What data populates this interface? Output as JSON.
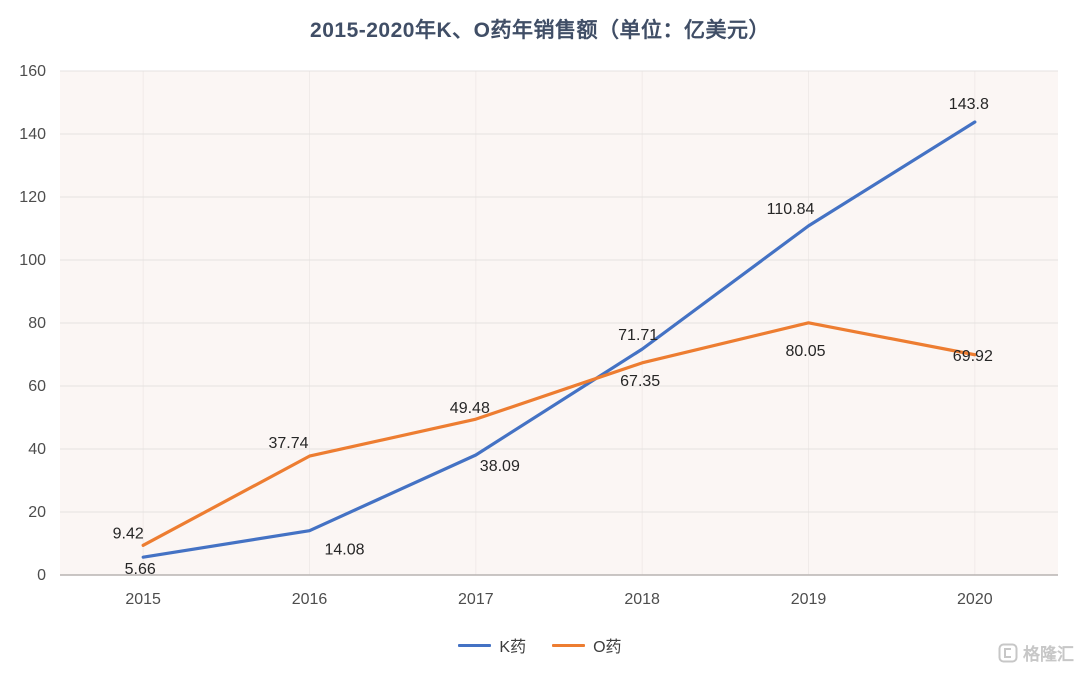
{
  "chart_data": {
    "type": "line",
    "title": "2015-2020年K、O药年销售额（单位：亿美元）",
    "xlabel": "",
    "ylabel": "",
    "categories": [
      "2015",
      "2016",
      "2017",
      "2018",
      "2019",
      "2020"
    ],
    "series": [
      {
        "name": "K药",
        "color": "#4472c4",
        "values": [
          5.66,
          14.08,
          38.09,
          71.71,
          110.84,
          143.8
        ],
        "labels": [
          "5.66",
          "14.08",
          "38.09",
          "71.71",
          "110.84",
          "143.8"
        ],
        "label_offsets": [
          [
            -3,
            17
          ],
          [
            35,
            24
          ],
          [
            24,
            16
          ],
          [
            -4,
            -9
          ],
          [
            -18,
            -12
          ],
          [
            -6,
            -13
          ]
        ]
      },
      {
        "name": "O药",
        "color": "#ed7d31",
        "values": [
          9.42,
          37.74,
          49.48,
          67.35,
          80.05,
          69.92
        ],
        "labels": [
          "9.42",
          "37.74",
          "49.48",
          "67.35",
          "80.05",
          "69.92"
        ],
        "label_offsets": [
          [
            -15,
            -7
          ],
          [
            -21,
            -8
          ],
          [
            -6,
            -6
          ],
          [
            -2,
            23
          ],
          [
            -3,
            33
          ],
          [
            -2,
            6
          ]
        ]
      }
    ],
    "y_axis": {
      "min": 0,
      "max": 160,
      "step": 20,
      "ticks": [
        "0",
        "20",
        "40",
        "60",
        "80",
        "100",
        "120",
        "140",
        "160"
      ]
    },
    "ylim": [
      0,
      160
    ],
    "grid": true,
    "legend_position": "bottom"
  },
  "watermark": {
    "text": "格隆汇"
  }
}
